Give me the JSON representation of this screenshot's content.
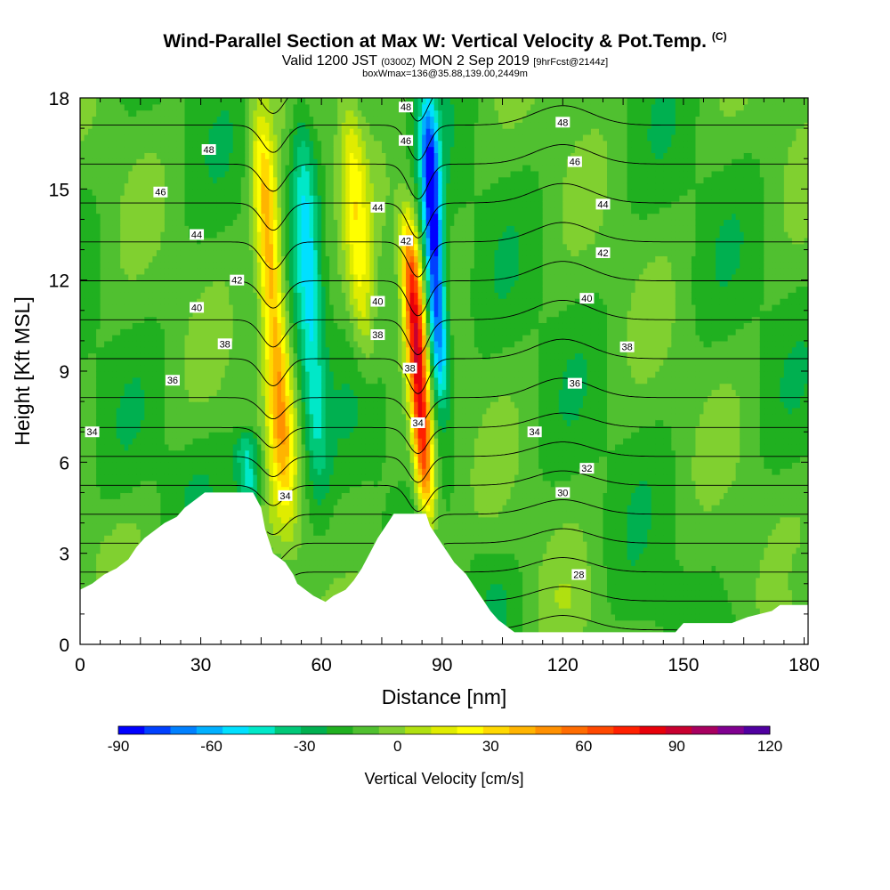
{
  "title": {
    "main": "Wind-Parallel Section at Max W: Vertical Velocity & Pot.Temp.",
    "main_tag": "(C)",
    "valid_a": "Valid 1200 JST",
    "valid_b": "(0300Z)",
    "valid_c": "MON 2 Sep 2019",
    "valid_d": "[9hrFcst@2144z]",
    "sub": "boxWmax=136@35.88,139.00,2449m"
  },
  "chart_data": {
    "type": "heatmap",
    "xlabel": "Distance [nm]",
    "ylabel": "Height [Kft MSL]",
    "xlim": [
      0,
      181
    ],
    "ylim": [
      0,
      18
    ],
    "xticks": [
      0,
      30,
      60,
      90,
      120,
      150,
      180
    ],
    "yticks": [
      0,
      3,
      6,
      9,
      12,
      15,
      18
    ],
    "colorbar": {
      "label": "Vertical Velocity [cm/s]",
      "ticks": [
        -90,
        -60,
        -30,
        0,
        30,
        60,
        90,
        120
      ],
      "range": [
        -90,
        120
      ],
      "step": 10,
      "colors": [
        "#0000ff",
        "#0040ff",
        "#0080ff",
        "#00b0ff",
        "#00e0ff",
        "#00e8c8",
        "#00c878",
        "#00b050",
        "#20b020",
        "#50c030",
        "#80d030",
        "#b0e010",
        "#e0ec00",
        "#ffff00",
        "#ffd800",
        "#ffb400",
        "#ff9000",
        "#ff6c00",
        "#ff4800",
        "#ff2000",
        "#e8000a",
        "#c80030",
        "#a80060",
        "#800090",
        "#5000a0"
      ]
    },
    "velocity_features": [
      {
        "kind": "updraft",
        "x": 48,
        "z_range": [
          4.5,
          17.5
        ],
        "peak_cm_s": 70
      },
      {
        "kind": "updraft",
        "x": 84,
        "z_range": [
          4.2,
          14
        ],
        "peak_cm_s": 110
      },
      {
        "kind": "updraft",
        "x": 69,
        "z_range": [
          9,
          18
        ],
        "peak_cm_s": 35
      },
      {
        "kind": "downdraft",
        "x": 88,
        "z_range": [
          8,
          18
        ],
        "peak_cm_s": -90
      },
      {
        "kind": "downdraft",
        "x": 57,
        "z_range": [
          5,
          18
        ],
        "peak_cm_s": -40
      },
      {
        "kind": "downdraft",
        "x": 42,
        "z_range": [
          4.5,
          7
        ],
        "peak_cm_s": -45
      }
    ],
    "terrain": [
      [
        0,
        1.8
      ],
      [
        3,
        2.0
      ],
      [
        6,
        2.3
      ],
      [
        9,
        2.5
      ],
      [
        12,
        2.8
      ],
      [
        14,
        3.2
      ],
      [
        16,
        3.5
      ],
      [
        19,
        3.8
      ],
      [
        21,
        4.0
      ],
      [
        24,
        4.2
      ],
      [
        26,
        4.5
      ],
      [
        29,
        4.8
      ],
      [
        31,
        5.0
      ],
      [
        43,
        5.0
      ],
      [
        45,
        4.5
      ],
      [
        46,
        3.8
      ],
      [
        48,
        3.0
      ],
      [
        51,
        2.7
      ],
      [
        53,
        2.3
      ],
      [
        54,
        2.0
      ],
      [
        56,
        1.8
      ],
      [
        58,
        1.6
      ],
      [
        61,
        1.4
      ],
      [
        63,
        1.6
      ],
      [
        66,
        1.8
      ],
      [
        68,
        2.1
      ],
      [
        70,
        2.5
      ],
      [
        72,
        3.0
      ],
      [
        74,
        3.5
      ],
      [
        76,
        3.9
      ],
      [
        78,
        4.3
      ],
      [
        86,
        4.3
      ],
      [
        87,
        3.9
      ],
      [
        89,
        3.5
      ],
      [
        91,
        3.1
      ],
      [
        93,
        2.7
      ],
      [
        96,
        2.3
      ],
      [
        98,
        1.9
      ],
      [
        100,
        1.5
      ],
      [
        102,
        1.1
      ],
      [
        104,
        0.8
      ],
      [
        106,
        0.6
      ],
      [
        108,
        0.4
      ],
      [
        148,
        0.4
      ],
      [
        150,
        0.7
      ],
      [
        162,
        0.7
      ],
      [
        166,
        0.9
      ],
      [
        172,
        1.1
      ],
      [
        174,
        1.3
      ],
      [
        181,
        1.3
      ]
    ],
    "theta_contours": {
      "unit": "C",
      "labels": [
        {
          "text": "48",
          "x": 32,
          "z": 16.3
        },
        {
          "text": "46",
          "x": 20,
          "z": 14.9
        },
        {
          "text": "44",
          "x": 29,
          "z": 13.5
        },
        {
          "text": "42",
          "x": 39,
          "z": 12.0
        },
        {
          "text": "40",
          "x": 29,
          "z": 11.1
        },
        {
          "text": "38",
          "x": 36,
          "z": 9.9
        },
        {
          "text": "36",
          "x": 23,
          "z": 8.7
        },
        {
          "text": "34",
          "x": 3,
          "z": 7.0
        },
        {
          "text": "34",
          "x": 51,
          "z": 4.9
        },
        {
          "text": "48",
          "x": 81,
          "z": 17.7
        },
        {
          "text": "46",
          "x": 81,
          "z": 16.6
        },
        {
          "text": "44",
          "x": 74,
          "z": 14.4
        },
        {
          "text": "42",
          "x": 81,
          "z": 13.3
        },
        {
          "text": "40",
          "x": 74,
          "z": 11.3
        },
        {
          "text": "38",
          "x": 74,
          "z": 10.2
        },
        {
          "text": "38",
          "x": 82,
          "z": 9.1
        },
        {
          "text": "34",
          "x": 84,
          "z": 7.3
        },
        {
          "text": "48",
          "x": 120,
          "z": 17.2
        },
        {
          "text": "46",
          "x": 123,
          "z": 15.9
        },
        {
          "text": "44",
          "x": 130,
          "z": 14.5
        },
        {
          "text": "42",
          "x": 130,
          "z": 12.9
        },
        {
          "text": "40",
          "x": 126,
          "z": 11.4
        },
        {
          "text": "38",
          "x": 136,
          "z": 9.8
        },
        {
          "text": "36",
          "x": 123,
          "z": 8.6
        },
        {
          "text": "34",
          "x": 113,
          "z": 7.0
        },
        {
          "text": "32",
          "x": 126,
          "z": 5.8
        },
        {
          "text": "30",
          "x": 120,
          "z": 5.0
        },
        {
          "text": "28",
          "x": 124,
          "z": 2.3
        }
      ]
    }
  }
}
